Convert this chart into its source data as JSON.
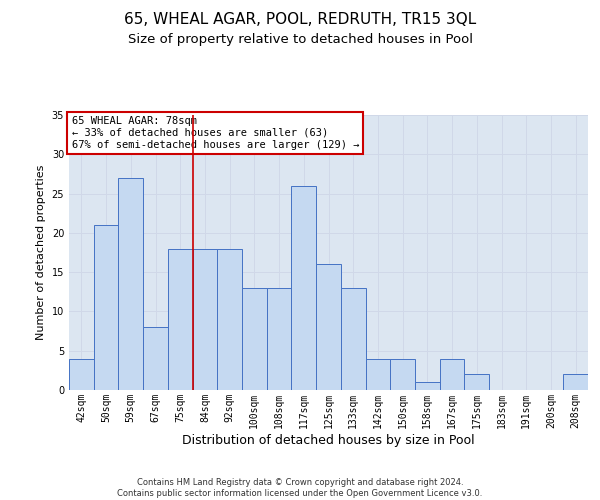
{
  "title1": "65, WHEAL AGAR, POOL, REDRUTH, TR15 3QL",
  "title2": "Size of property relative to detached houses in Pool",
  "xlabel": "Distribution of detached houses by size in Pool",
  "ylabel": "Number of detached properties",
  "categories": [
    "42sqm",
    "50sqm",
    "59sqm",
    "67sqm",
    "75sqm",
    "84sqm",
    "92sqm",
    "100sqm",
    "108sqm",
    "117sqm",
    "125sqm",
    "133sqm",
    "142sqm",
    "150sqm",
    "158sqm",
    "167sqm",
    "175sqm",
    "183sqm",
    "191sqm",
    "200sqm",
    "208sqm"
  ],
  "values": [
    4,
    21,
    27,
    8,
    18,
    18,
    18,
    13,
    13,
    26,
    16,
    13,
    4,
    4,
    1,
    4,
    2,
    0,
    0,
    0,
    2
  ],
  "bar_color": "#c5d9f1",
  "bar_edge_color": "#4472c4",
  "property_line_x": 4.5,
  "property_sqm": "78sqm",
  "pct_smaller": 33,
  "n_smaller": 63,
  "pct_larger_semi": 67,
  "n_larger_semi": 129,
  "annotation_box_color": "#ffffff",
  "annotation_box_edge": "#cc0000",
  "vline_color": "#cc0000",
  "ylim": [
    0,
    35
  ],
  "yticks": [
    0,
    5,
    10,
    15,
    20,
    25,
    30,
    35
  ],
  "grid_color": "#d0d8e8",
  "bg_color": "#dce6f1",
  "footer": "Contains HM Land Registry data © Crown copyright and database right 2024.\nContains public sector information licensed under the Open Government Licence v3.0.",
  "title1_fontsize": 11,
  "title2_fontsize": 9.5,
  "xlabel_fontsize": 9,
  "ylabel_fontsize": 8,
  "tick_fontsize": 7,
  "footer_fontsize": 6,
  "ann_fontsize": 7.5
}
